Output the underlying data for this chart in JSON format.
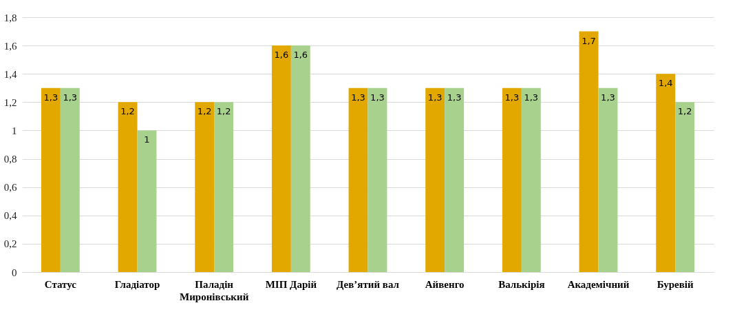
{
  "chart_data": {
    "type": "bar",
    "categories": [
      "Статус",
      "Гладіатор",
      "Паладін Миронівський",
      "МІП Дарій",
      "Дев’ятий вал",
      "Айвенго",
      "Валькірія",
      "Академічний",
      "Буревій"
    ],
    "series": [
      {
        "color": "#e2a800",
        "values": [
          1.3,
          1.2,
          1.2,
          1.6,
          1.3,
          1.3,
          1.3,
          1.7,
          1.4
        ],
        "value_labels": [
          "1,3",
          "1,2",
          "1,2",
          "1,6",
          "1,3",
          "1,3",
          "1,3",
          "1,7",
          "1,4"
        ]
      },
      {
        "color": "#a9d18e",
        "values": [
          1.3,
          1.0,
          1.2,
          1.6,
          1.3,
          1.3,
          1.3,
          1.3,
          1.2
        ],
        "value_labels": [
          "1,3",
          "1",
          "1,2",
          "1,6",
          "1,3",
          "1,3",
          "1,3",
          "1,3",
          "1,2"
        ]
      }
    ],
    "ylim": [
      0,
      1.8
    ],
    "yticks": [
      {
        "value": 0,
        "label": "0"
      },
      {
        "value": 0.2,
        "label": "0,2"
      },
      {
        "value": 0.4,
        "label": "0,4"
      },
      {
        "value": 0.6,
        "label": "0,6"
      },
      {
        "value": 0.8,
        "label": "0,8"
      },
      {
        "value": 1,
        "label": "1"
      },
      {
        "value": 1.2,
        "label": "1,2"
      },
      {
        "value": 1.4,
        "label": "1,4"
      },
      {
        "value": 1.6,
        "label": "1,6"
      },
      {
        "value": 1.8,
        "label": "1,8"
      }
    ],
    "grid": true
  }
}
